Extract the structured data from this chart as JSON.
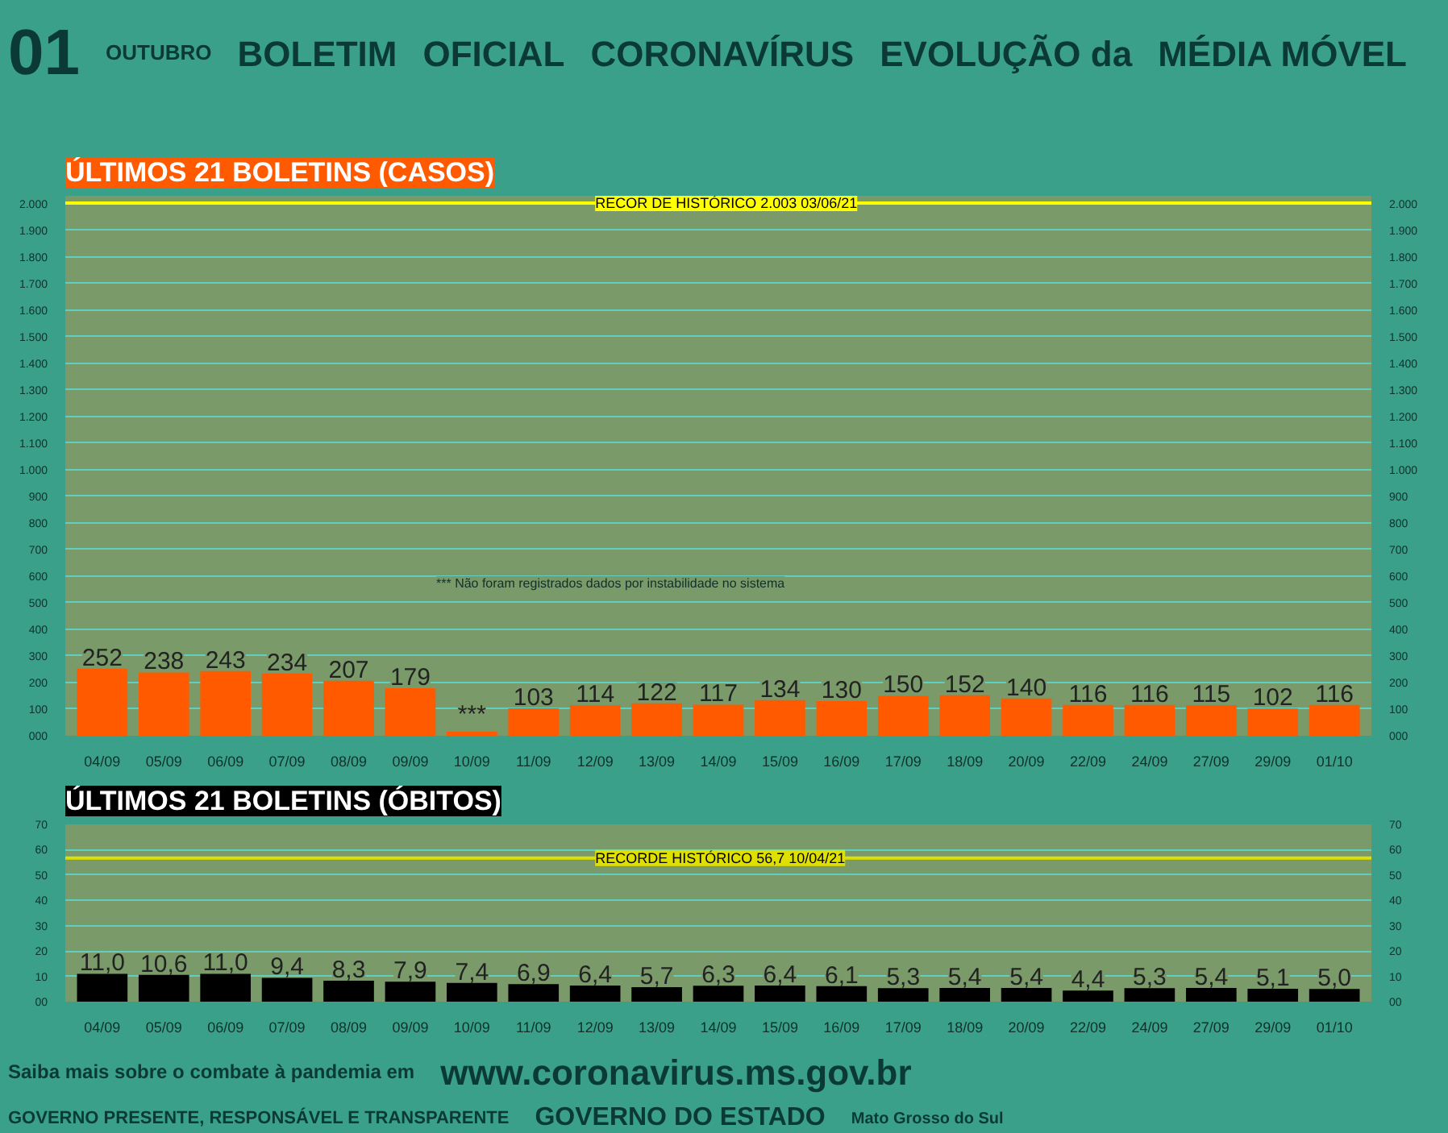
{
  "chart_data": [
    {
      "type": "bar",
      "title": "ÚLTIMOS 21 BOLETINS (CASOS)",
      "annotations": [
        "01",
        "OUTUBRO",
        "BOLETIM",
        "OFICIAL",
        "CORONAVÍRUS",
        "EVOLUÇÃO da",
        "MÉDIA MÓVEL",
        "*** Não foram registrados dados por instabilidade no sistema"
      ],
      "categories": [
        "04/09",
        "05/09",
        "06/09",
        "07/09",
        "08/09",
        "09/09",
        "10/09",
        "11/09",
        "12/09",
        "13/09",
        "14/09",
        "15/09",
        "16/09",
        "17/09",
        "18/09",
        "20/09",
        "22/09",
        "24/09",
        "27/09",
        "29/09",
        "01/10"
      ],
      "values": [
        252,
        238,
        243,
        234,
        207,
        179,
        15,
        103,
        114,
        122,
        117,
        134,
        130,
        150,
        152,
        140,
        116,
        116,
        115,
        102,
        116
      ],
      "value_labels": [
        "252",
        "238",
        "243",
        "234",
        "207",
        "179",
        "***",
        "103",
        "114",
        "122",
        "117",
        "134",
        "130",
        "150",
        "152",
        "140",
        "116",
        "116",
        "115",
        "102",
        "116"
      ],
      "color": "#ff5a00",
      "ylim": [
        0,
        2030
      ],
      "yticks": [
        {
          "value": 0,
          "label": "000"
        },
        100,
        200,
        300,
        400,
        500,
        600,
        700,
        800,
        900,
        {
          "value": 1000,
          "label": "1.000"
        },
        {
          "value": 1100,
          "label": "1.100"
        },
        {
          "value": 1200,
          "label": "1.200"
        },
        {
          "value": 1300,
          "label": "1.300"
        },
        {
          "value": 1400,
          "label": "1.400"
        },
        {
          "value": 1500,
          "label": "1.500"
        },
        {
          "value": 1600,
          "label": "1.600"
        },
        {
          "value": 1700,
          "label": "1.700"
        },
        {
          "value": 1800,
          "label": "1.800"
        },
        {
          "value": 1900,
          "label": "1.900"
        },
        {
          "value": 2000,
          "label": "2.000"
        }
      ],
      "y2lim": [
        0,
        2030
      ],
      "y2ticks": [
        {
          "value": 0,
          "label": "000"
        },
        100,
        200,
        300,
        400,
        500,
        600,
        700,
        800,
        900,
        {
          "value": 1000,
          "label": "1.000"
        },
        {
          "value": 1100,
          "label": "1.100"
        },
        {
          "value": 1200,
          "label": "1.200"
        },
        {
          "value": 1300,
          "label": "1.300"
        },
        {
          "value": 1400,
          "label": "1.400"
        },
        {
          "value": 1500,
          "label": "1.500"
        },
        {
          "value": 1600,
          "label": "1.600"
        },
        {
          "value": 1700,
          "label": "1.700"
        },
        {
          "value": 1800,
          "label": "1.800"
        },
        {
          "value": 1900,
          "label": "1.900"
        },
        {
          "value": 2000,
          "label": "2.000"
        }
      ],
      "ref_lines": [
        {
          "axis": "y",
          "value": 2003,
          "label": "RECOR DE HISTÓRICO 2.003 03/06/21",
          "color": "#ffff00"
        }
      ],
      "grid": "y"
    },
    {
      "type": "bar",
      "title": "ÚLTIMOS 21 BOLETINS (ÓBITOS)",
      "annotations": [
        "Saiba mais sobre o combate à pandemia em",
        "www.coronavirus.ms.gov.br",
        "GOVERNO PRESENTE, RESPONSÁVEL E TRANSPARENTE",
        "GOVERNO DO ESTADO",
        "Mato Grosso do Sul"
      ],
      "categories": [
        "04/09",
        "05/09",
        "06/09",
        "07/09",
        "08/09",
        "09/09",
        "10/09",
        "11/09",
        "12/09",
        "13/09",
        "14/09",
        "15/09",
        "16/09",
        "17/09",
        "18/09",
        "20/09",
        "22/09",
        "24/09",
        "27/09",
        "29/09",
        "01/10"
      ],
      "values": [
        11.0,
        10.6,
        11.0,
        9.4,
        8.3,
        7.9,
        7.4,
        6.9,
        6.4,
        5.7,
        6.3,
        6.4,
        6.1,
        5.3,
        5.4,
        5.4,
        4.4,
        5.3,
        5.4,
        5.1,
        5.0
      ],
      "value_labels": [
        "11,0",
        "10,6",
        "11,0",
        "9,4",
        "8,3",
        "7,9",
        "7,4",
        "6,9",
        "6,4",
        "5,7",
        "6,3",
        "6,4",
        "6,1",
        "5,3",
        "5,4",
        "5,4",
        "4,4",
        "5,3",
        "5,4",
        "5,1",
        "5,0"
      ],
      "color": "#000000",
      "ylim": [
        0,
        70
      ],
      "yticks": [
        {
          "value": 0,
          "label": "00"
        },
        10,
        20,
        30,
        40,
        50,
        60,
        70
      ],
      "y2lim": [
        0,
        70
      ],
      "y2ticks": [
        {
          "value": 0,
          "label": "00"
        },
        10,
        20,
        30,
        40,
        50,
        60,
        70
      ],
      "ref_lines": [
        {
          "axis": "y",
          "value": 56.7,
          "label": "RECORDE HISTÓRICO 56,7 10/04/21",
          "color": "#e0e000"
        }
      ],
      "grid": "y"
    }
  ]
}
